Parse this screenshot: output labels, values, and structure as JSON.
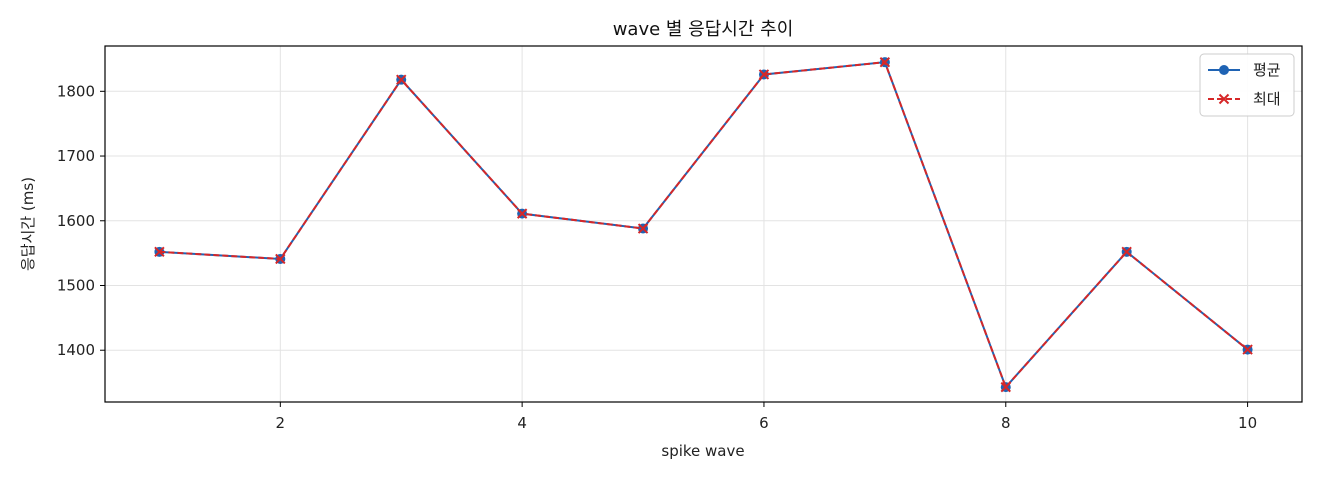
{
  "chart_data": {
    "type": "line",
    "title": "wave 별 응답시간 추이",
    "xlabel": "spike wave",
    "ylabel": "응답시간 (ms)",
    "x": [
      1,
      2,
      3,
      4,
      5,
      6,
      7,
      8,
      9,
      10
    ],
    "xlim": [
      0.55,
      10.45
    ],
    "ylim": [
      1320,
      1870
    ],
    "xticks": [
      2,
      4,
      6,
      8,
      10
    ],
    "yticks": [
      1400,
      1500,
      1600,
      1700,
      1800
    ],
    "grid": true,
    "legend_position": "top-right",
    "series": [
      {
        "name": "평균",
        "values": [
          1552,
          1541,
          1818,
          1611,
          1588,
          1826,
          1845,
          1343,
          1552,
          1401
        ],
        "color": "#1f63b4",
        "style": "solid",
        "marker": "circle"
      },
      {
        "name": "최대",
        "values": [
          1552,
          1541,
          1818,
          1611,
          1588,
          1826,
          1845,
          1343,
          1552,
          1401
        ],
        "color": "#d62728",
        "style": "dashed",
        "marker": "x"
      }
    ]
  }
}
